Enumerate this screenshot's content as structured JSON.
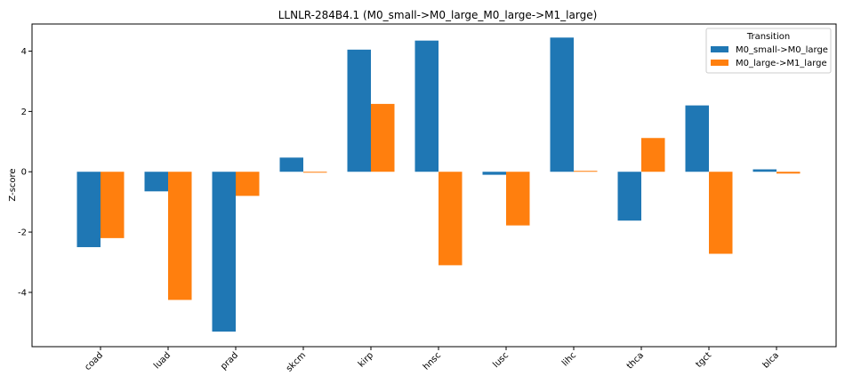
{
  "chart_data": {
    "type": "bar",
    "title": "LLNLR-284B4.1 (M0_small->M0_large_M0_large->M1_large)",
    "xlabel": "",
    "ylabel": "Z-score",
    "categories": [
      "coad",
      "luad",
      "prad",
      "skcm",
      "kirp",
      "hnsc",
      "lusc",
      "lihc",
      "thca",
      "tgct",
      "blca"
    ],
    "series": [
      {
        "name": "M0_small->M0_large",
        "color": "#1f77b4",
        "values": [
          -2.5,
          -0.65,
          -5.3,
          0.47,
          4.05,
          4.35,
          -0.1,
          4.45,
          -1.62,
          2.2,
          0.08
        ]
      },
      {
        "name": "M0_large->M1_large",
        "color": "#ff7f0e",
        "values": [
          -2.2,
          -4.25,
          -0.8,
          -0.03,
          2.25,
          -3.1,
          -1.78,
          0.03,
          1.12,
          -2.72,
          -0.06
        ]
      }
    ],
    "ylim": [
      -5.8,
      4.9
    ],
    "yticks": [
      -4,
      -2,
      0,
      2,
      4
    ],
    "legend": {
      "title": "Transition",
      "placement": "top-right"
    },
    "grid": false
  }
}
